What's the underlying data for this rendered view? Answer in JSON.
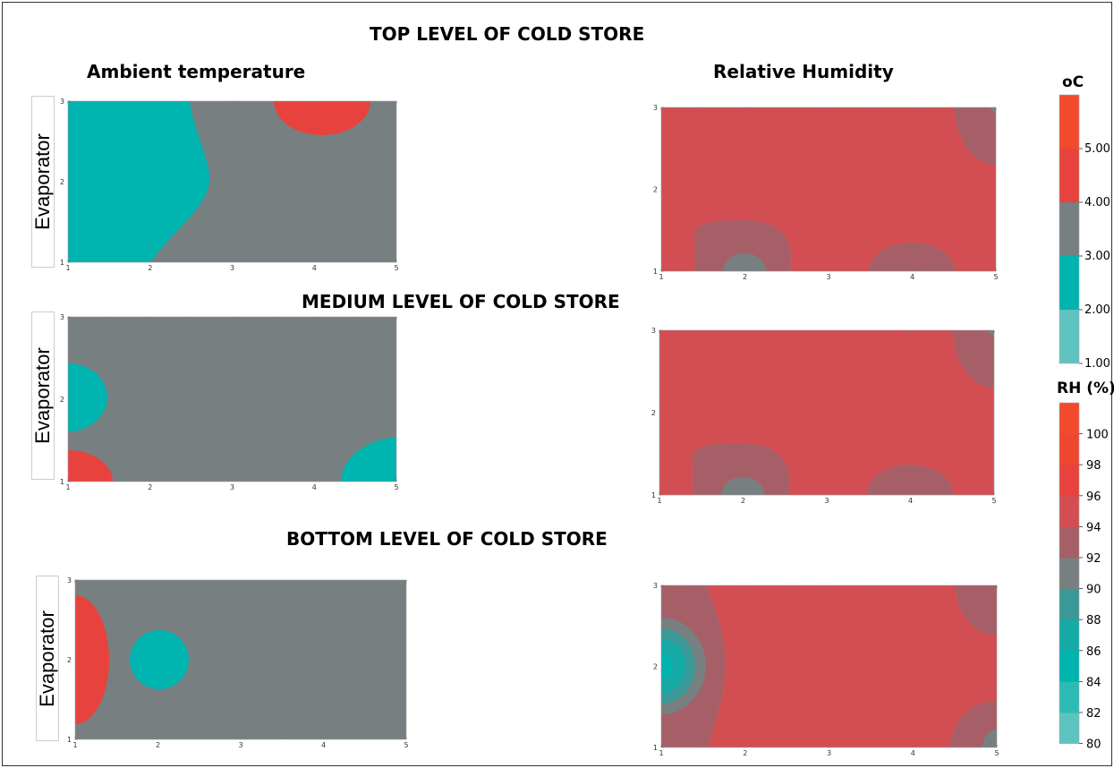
{
  "titles": {
    "top_level": "TOP LEVEL OF COLD STORE",
    "medium_level": "MEDIUM LEVEL OF COLD STORE",
    "bottom_level": "BOTTOM LEVEL OF COLD STORE",
    "ambient_temperature": "Ambient temperature",
    "relative_humidity": "Relative Humidity",
    "evaporator": "Evaporator"
  },
  "colors": {
    "t_1_2": "#5fc4bf",
    "t_2_3": "#00b4b0",
    "t_3_4": "#787f81",
    "t_4_5": "#e8423e",
    "t_5_6": "#f24a2a",
    "rh_80_82": "#5cc4bf",
    "rh_82_84": "#2ebab4",
    "rh_84_86": "#00b4b0",
    "rh_86_88": "#16aaa6",
    "rh_88_90": "#3a9896",
    "rh_90_92": "#787f81",
    "rh_92_94": "#a65f67",
    "rh_94_96": "#d24e52",
    "rh_96_98": "#e8423e",
    "rh_98_100": "#ef4630",
    "rh_100_102": "#f24a2a"
  },
  "colorbar_temp": {
    "title": "oC",
    "ticks": [
      "1.00",
      "2.00",
      "3.00",
      "4.00",
      "5.00"
    ]
  },
  "colorbar_rh": {
    "title": "RH (%)",
    "ticks": [
      "80",
      "82",
      "84",
      "86",
      "88",
      "90",
      "92",
      "94",
      "96",
      "98",
      "100"
    ]
  },
  "chart_data": [
    {
      "type": "heatmap",
      "title": "Ambient temperature",
      "level": "TOP LEVEL OF COLD STORE",
      "xlim": [
        1,
        5
      ],
      "ylim": [
        1,
        3
      ],
      "xticks": [
        "1",
        "2",
        "3",
        "4",
        "5"
      ],
      "yticks": [
        "1",
        "2",
        "3"
      ],
      "colorbar": "oC",
      "regions": [
        {
          "range": "2.00-3.00",
          "area": "x 1 to about 2.4 over full height, widening to x≈2.7 at y=2"
        },
        {
          "range": "3.00-4.00",
          "area": "remaining background"
        },
        {
          "range": "4.00-5.00",
          "area": "around x=4, y=3 (top edge)"
        }
      ]
    },
    {
      "type": "heatmap",
      "title": "Relative Humidity",
      "level": "TOP LEVEL OF COLD STORE",
      "xlim": [
        1,
        5
      ],
      "ylim": [
        1,
        3
      ],
      "xticks": [
        "1",
        "2",
        "3",
        "4",
        "5"
      ],
      "yticks": [
        "1",
        "2",
        "3"
      ],
      "colorbar": "RH (%)",
      "regions": [
        {
          "range": "94-96",
          "area": "background"
        },
        {
          "range": "92-94",
          "area": "around x=2, y=1; around x=4, y=1; corner x=5, y=3"
        },
        {
          "range": "90-92",
          "area": "x=2, y=1"
        }
      ]
    },
    {
      "type": "heatmap",
      "title": "Ambient temperature",
      "level": "MEDIUM LEVEL OF COLD STORE",
      "xlim": [
        1,
        5
      ],
      "ylim": [
        1,
        3
      ],
      "xticks": [
        "1",
        "2",
        "3",
        "4",
        "5"
      ],
      "yticks": [
        "1",
        "2",
        "3"
      ],
      "colorbar": "oC",
      "regions": [
        {
          "range": "3.00-4.00",
          "area": "background"
        },
        {
          "range": "2.00-3.00",
          "area": "around x=1, y=2; corner x=5, y=1"
        },
        {
          "range": "4.00-5.00",
          "area": "corner x=1, y=1"
        }
      ]
    },
    {
      "type": "heatmap",
      "title": "Relative Humidity",
      "level": "MEDIUM LEVEL OF COLD STORE",
      "xlim": [
        1,
        5
      ],
      "ylim": [
        1,
        3
      ],
      "xticks": [
        "1",
        "2",
        "3",
        "4",
        "5"
      ],
      "yticks": [
        "1",
        "2",
        "3"
      ],
      "colorbar": "RH (%)",
      "regions": [
        {
          "range": "94-96",
          "area": "background"
        },
        {
          "range": "92-94",
          "area": "around x=2, y=1; around x=4, y=1; corner x=5, y=3"
        },
        {
          "range": "90-92",
          "area": "x=2, y=1"
        }
      ]
    },
    {
      "type": "heatmap",
      "title": "Ambient temperature",
      "level": "BOTTOM LEVEL OF COLD STORE",
      "xlim": [
        1,
        5
      ],
      "ylim": [
        1,
        3
      ],
      "xticks": [
        "1",
        "2",
        "3",
        "4",
        "5"
      ],
      "yticks": [
        "1",
        "2",
        "3"
      ],
      "colorbar": "oC",
      "regions": [
        {
          "range": "3.00-4.00",
          "area": "background"
        },
        {
          "range": "4.00-5.00",
          "area": "around x=1, y=2 (left edge)"
        },
        {
          "range": "2.00-3.00",
          "area": "around x=2, y=2"
        }
      ]
    },
    {
      "type": "heatmap",
      "title": "Relative Humidity",
      "level": "BOTTOM LEVEL OF COLD STORE",
      "xlim": [
        1,
        5
      ],
      "ylim": [
        1,
        3
      ],
      "xticks": [
        "1",
        "2",
        "3",
        "4",
        "5"
      ],
      "yticks": [
        "1",
        "2",
        "3"
      ],
      "colorbar": "RH (%)",
      "regions": [
        {
          "range": "94-96",
          "area": "background"
        },
        {
          "range": "92-94",
          "area": "left strip x 1 to about 1.7; corners x=5, y=3 and x=5, y=1"
        },
        {
          "range": "90-92",
          "area": "around x=1, y=2"
        },
        {
          "range": "88-90",
          "area": "around x=1, y=2"
        },
        {
          "range": "86-88",
          "area": "around x=1, y=2"
        },
        {
          "range": "84-86",
          "area": "x=1, y=2"
        },
        {
          "range": "90-92",
          "area": "x=5, y=1"
        }
      ]
    }
  ]
}
